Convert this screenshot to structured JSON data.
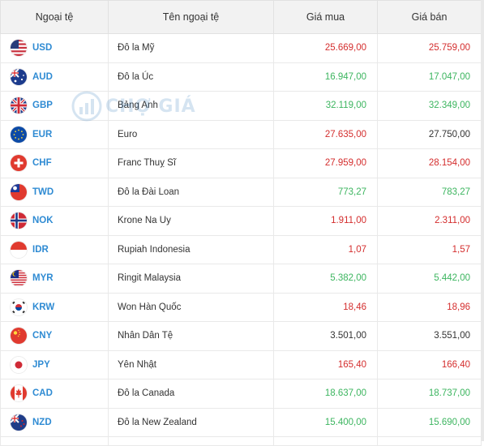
{
  "header": {
    "code": "Ngoại tệ",
    "name": "Tên ngoại tệ",
    "buy": "Giá mua",
    "sell": "Giá bán"
  },
  "watermark": {
    "text": "CHỢ GIÁ"
  },
  "colors": {
    "up": "#3cb55f",
    "down": "#d42d2d",
    "neutral": "#333333",
    "code": "#2f8bd3"
  },
  "rows": [
    {
      "flag": "us-flag-icon",
      "code": "USD",
      "name": "Đô la Mỹ",
      "buy": "25.669,00",
      "buy_color": "red",
      "sell": "25.759,00",
      "sell_color": "red"
    },
    {
      "flag": "au-flag-icon",
      "code": "AUD",
      "name": "Đô la Úc",
      "buy": "16.947,00",
      "buy_color": "green",
      "sell": "17.047,00",
      "sell_color": "green"
    },
    {
      "flag": "gb-flag-icon",
      "code": "GBP",
      "name": "Bảng Anh",
      "buy": "32.119,00",
      "buy_color": "green",
      "sell": "32.349,00",
      "sell_color": "green"
    },
    {
      "flag": "eu-flag-icon",
      "code": "EUR",
      "name": "Euro",
      "buy": "27.635,00",
      "buy_color": "red",
      "sell": "27.750,00",
      "sell_color": "black"
    },
    {
      "flag": "ch-flag-icon",
      "code": "CHF",
      "name": "Franc Thuỵ Sĩ",
      "buy": "27.959,00",
      "buy_color": "red",
      "sell": "28.154,00",
      "sell_color": "red"
    },
    {
      "flag": "tw-flag-icon",
      "code": "TWD",
      "name": "Đô la Đài Loan",
      "buy": "773,27",
      "buy_color": "green",
      "sell": "783,27",
      "sell_color": "green"
    },
    {
      "flag": "no-flag-icon",
      "code": "NOK",
      "name": "Krone Na Uy",
      "buy": "1.911,00",
      "buy_color": "red",
      "sell": "2.311,00",
      "sell_color": "red"
    },
    {
      "flag": "id-flag-icon",
      "code": "IDR",
      "name": "Rupiah Indonesia",
      "buy": "1,07",
      "buy_color": "red",
      "sell": "1,57",
      "sell_color": "red"
    },
    {
      "flag": "my-flag-icon",
      "code": "MYR",
      "name": "Ringit Malaysia",
      "buy": "5.382,00",
      "buy_color": "green",
      "sell": "5.442,00",
      "sell_color": "green"
    },
    {
      "flag": "kr-flag-icon",
      "code": "KRW",
      "name": "Won Hàn Quốc",
      "buy": "18,46",
      "buy_color": "red",
      "sell": "18,96",
      "sell_color": "red"
    },
    {
      "flag": "cn-flag-icon",
      "code": "CNY",
      "name": "Nhân Dân Tệ",
      "buy": "3.501,00",
      "buy_color": "black",
      "sell": "3.551,00",
      "sell_color": "black"
    },
    {
      "flag": "jp-flag-icon",
      "code": "JPY",
      "name": "Yên Nhật",
      "buy": "165,40",
      "buy_color": "red",
      "sell": "166,40",
      "sell_color": "red"
    },
    {
      "flag": "ca-flag-icon",
      "code": "CAD",
      "name": "Đô la Canada",
      "buy": "18.637,00",
      "buy_color": "green",
      "sell": "18.737,00",
      "sell_color": "green"
    },
    {
      "flag": "nz-flag-icon",
      "code": "NZD",
      "name": "Đô la New Zealand",
      "buy": "15.400,00",
      "buy_color": "green",
      "sell": "15.690,00",
      "sell_color": "green"
    }
  ]
}
